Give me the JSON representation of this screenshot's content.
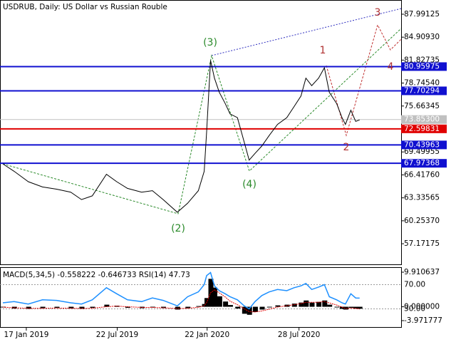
{
  "chart_data": [
    {
      "type": "line",
      "title": "USDRUB, Daily:  US Dollar vs Russian Rouble",
      "x": [
        "2018-11-30",
        "2018-12-23",
        "2019-01-21",
        "2019-02-19",
        "2019-03-20",
        "2019-04-18",
        "2019-05-10",
        "2019-06-01",
        "2019-06-30",
        "2019-07-21",
        "2019-08-12",
        "2019-09-10",
        "2019-10-02",
        "2019-10-24",
        "2019-11-22",
        "2019-12-13",
        "2020-01-04",
        "2020-01-16",
        "2020-01-21",
        "2020-01-29",
        "2020-02-06",
        "2020-02-16",
        "2020-02-28",
        "2020-03-09",
        "2020-03-24",
        "2020-04-07",
        "2020-04-17",
        "2020-04-29",
        "2020-05-13",
        "2020-05-28",
        "2020-06-14",
        "2020-07-03",
        "2020-07-18",
        "2020-08-01",
        "2020-08-11",
        "2020-08-23",
        "2020-09-06",
        "2020-09-18",
        "2020-09-28",
        "2020-10-13",
        "2020-10-24",
        "2020-10-31",
        "2020-11-11",
        "2020-11-21",
        "2020-11-29"
      ],
      "series": [
        {
          "color": "#000000",
          "values": [
            67.9,
            66.9,
            65.5,
            64.8,
            64.5,
            64.1,
            63.1,
            63.6,
            66.5,
            65.5,
            64.6,
            64.1,
            64.3,
            63.1,
            61.4,
            62.6,
            64.3,
            66.9,
            72.2,
            81.8,
            79.4,
            77.5,
            76.0,
            74.6,
            74.1,
            70.8,
            68.4,
            69.3,
            70.3,
            71.7,
            73.2,
            74.1,
            75.6,
            77.0,
            79.4,
            78.4,
            79.4,
            80.8,
            77.5,
            76.0,
            74.1,
            73.2,
            75.1,
            73.6,
            73.8
          ]
        }
      ],
      "xlim": [
        "2018-11-30",
        "2021-02-22"
      ],
      "ylim": [
        54.31,
        89.9
      ],
      "yticks": [
        87.99125,
        {
          "value": 84.9093,
          "label": "84.90930"
        },
        81.82735,
        {
          "value": 78.7454,
          "label": "78.74540"
        },
        75.66345,
        69.49955,
        {
          "value": 66.4176,
          "label": "66.41760"
        },
        63.33565,
        {
          "value": 60.2537,
          "label": "60.25370"
        },
        57.17175
      ],
      "xticks": [
        {
          "value": "2019-01-17",
          "label": "17 Jan 2019"
        },
        {
          "value": "2019-07-22",
          "label": "22 Jul 2019"
        },
        {
          "value": "2020-01-22",
          "label": "22 Jan 2020"
        },
        {
          "value": "2020-07-28",
          "label": "28 Jul 2020"
        }
      ],
      "current": {
        "value": 73.853,
        "label": "73.85300",
        "color": "#c0c0c0"
      },
      "levels": [
        {
          "value": 80.95975,
          "color": "#1010d0"
        },
        {
          "value": 77.70294,
          "color": "#1010d0"
        },
        {
          "value": 72.59831,
          "color": "#e00000"
        },
        {
          "value": 70.43963,
          "color": "#1010d0"
        },
        {
          "value": 67.97368,
          "color": "#1010d0"
        }
      ],
      "annotations": [
        "(3)",
        "(2)",
        "(4)",
        "1",
        "2",
        "3",
        "4"
      ]
    },
    {
      "type": "macd",
      "title": "MACD(5,34,5) -0.558222 -0.646733 RSI(14) 47.73",
      "ylim": [
        -3.971777,
        9.910637
      ],
      "yticks": [
        {
          "value": 9.910637,
          "label": "9.910637"
        },
        {
          "value": 0,
          "label": "0.000000"
        },
        -3.971777
      ],
      "y2lim": [
        0,
        100
      ],
      "y2ticks": [
        {
          "value": 70,
          "label": "70.00"
        },
        {
          "value": 30,
          "label": "30.00"
        }
      ],
      "series": [
        {
          "color": "#000000",
          "values": [
            -0.2,
            -0.5,
            -0.6,
            -0.4,
            -0.3,
            -0.5,
            -0.6,
            -0.3,
            0.6,
            0.3,
            -0.3,
            -0.4,
            -0.2,
            -0.4,
            -0.8,
            -0.4,
            0.2,
            0.8,
            2.5,
            8.0,
            5.5,
            3.0,
            1.5,
            0.5,
            -0.5,
            -2.0,
            -2.3,
            -1.5,
            -0.8,
            -0.2,
            0.4,
            0.6,
            0.9,
            1.2,
            1.8,
            1.2,
            1.4,
            1.8,
            0.6,
            -0.2,
            -0.6,
            -0.8,
            -0.3,
            -0.5,
            -0.56
          ]
        },
        {
          "color": "#e00000",
          "values": [
            -0.1,
            -0.3,
            -0.45,
            -0.45,
            -0.38,
            -0.42,
            -0.5,
            -0.42,
            0.0,
            0.2,
            0.0,
            -0.2,
            -0.2,
            -0.3,
            -0.5,
            -0.45,
            -0.15,
            0.3,
            1.2,
            4.0,
            4.8,
            4.0,
            2.8,
            1.6,
            0.6,
            -0.6,
            -1.4,
            -1.5,
            -1.2,
            -0.7,
            -0.1,
            0.3,
            0.6,
            0.9,
            1.3,
            1.3,
            1.3,
            1.5,
            1.1,
            0.5,
            -0.1,
            -0.5,
            -0.4,
            -0.5,
            -0.65
          ]
        },
        {
          "color": "#1e90ff",
          "axis": "y2",
          "values": [
            40,
            42,
            38,
            45,
            44,
            40,
            38,
            45,
            65,
            55,
            45,
            42,
            48,
            44,
            35,
            50,
            58,
            70,
            85,
            90,
            68,
            60,
            55,
            50,
            45,
            35,
            30,
            42,
            52,
            58,
            62,
            60,
            65,
            68,
            72,
            62,
            66,
            70,
            50,
            45,
            40,
            38,
            55,
            48,
            47.73
          ]
        }
      ]
    }
  ]
}
